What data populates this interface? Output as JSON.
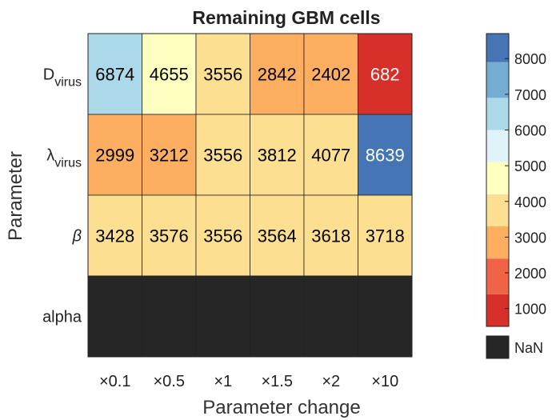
{
  "chart_data": {
    "type": "heatmap",
    "title": "Remaining GBM cells",
    "xlabel": "Parameter change",
    "ylabel": "Parameter",
    "x_categories": [
      "×0.1",
      "×0.5",
      "×1",
      "×1.5",
      "×2",
      "×10"
    ],
    "y_categories": [
      {
        "base": "D",
        "sub": "virus"
      },
      {
        "base": "λ",
        "sub": "virus"
      },
      {
        "base": "β",
        "sub": ""
      },
      {
        "base": "alpha",
        "sub": ""
      }
    ],
    "values": [
      [
        6874,
        4655,
        3556,
        2842,
        2402,
        682
      ],
      [
        2999,
        3212,
        3556,
        3812,
        4077,
        8639
      ],
      [
        3428,
        3576,
        3556,
        3564,
        3618,
        3718
      ],
      [
        null,
        null,
        null,
        null,
        null,
        null
      ]
    ],
    "colorbar": {
      "ticks": [
        1000,
        2000,
        3000,
        4000,
        5000,
        6000,
        7000,
        8000
      ],
      "range": [
        500,
        8700
      ],
      "nan_label": "NaN",
      "nan_color": "#262626",
      "bins": [
        {
          "from": 500,
          "to": 1400,
          "color": "#d7302a"
        },
        {
          "from": 1400,
          "to": 2400,
          "color": "#ef6445"
        },
        {
          "from": 2400,
          "to": 3300,
          "color": "#fdae61"
        },
        {
          "from": 3300,
          "to": 4200,
          "color": "#fddf91"
        },
        {
          "from": 4200,
          "to": 5100,
          "color": "#ffffbf"
        },
        {
          "from": 5100,
          "to": 6000,
          "color": "#e0f3f8"
        },
        {
          "from": 6000,
          "to": 6900,
          "color": "#abd9e9"
        },
        {
          "from": 6900,
          "to": 7900,
          "color": "#74add1"
        },
        {
          "from": 7900,
          "to": 8700,
          "color": "#4575b4"
        }
      ]
    }
  }
}
